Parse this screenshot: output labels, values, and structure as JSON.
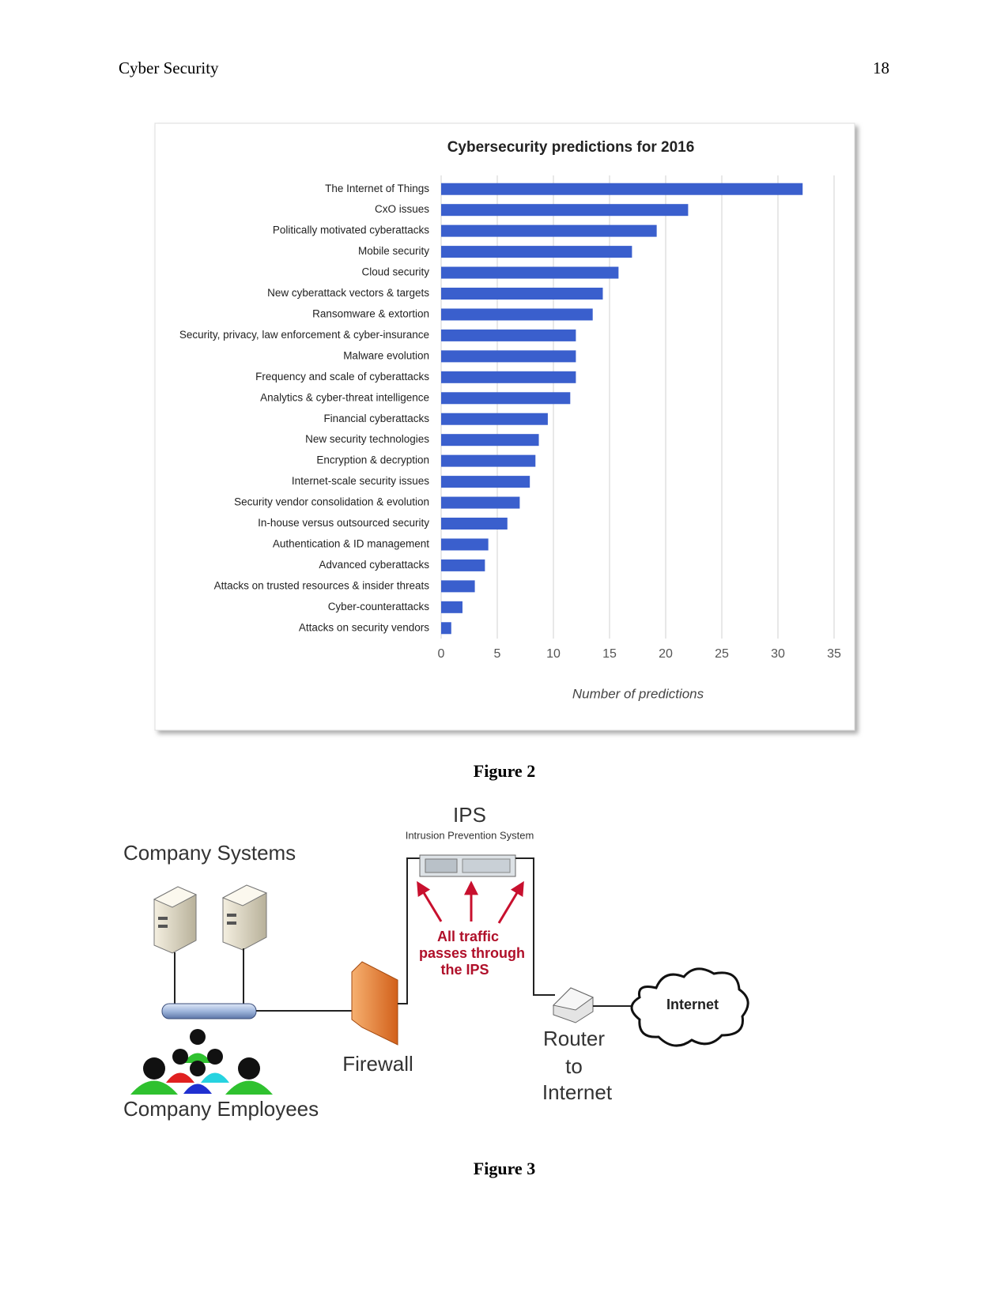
{
  "header": {
    "title": "Cyber Security",
    "page_number": "18"
  },
  "chart_data": {
    "type": "bar",
    "orientation": "horizontal",
    "title": "Cybersecurity predictions for 2016",
    "x_label": "Number of predictions",
    "categories": [
      "The Internet of Things",
      "CxO issues",
      "Politically motivated cyberattacks",
      "Mobile security",
      "Cloud security",
      "New cyberattack vectors & targets",
      "Ransomware & extortion",
      "Security, privacy, law enforcement & cyber-insurance",
      "Malware evolution",
      "Frequency and scale of cyberattacks",
      "Analytics & cyber-threat intelligence",
      "Financial cyberattacks",
      "New security technologies",
      "Encryption & decryption",
      "Internet-scale security issues",
      "Security vendor consolidation & evolution",
      "In-house versus outsourced security",
      "Authentication & ID management",
      "Advanced cyberattacks",
      "Attacks on trusted resources & insider threats",
      "Cyber-counterattacks",
      "Attacks on security vendors"
    ],
    "values": [
      32.2,
      22,
      19.2,
      17,
      15.8,
      14.4,
      13.5,
      12,
      12,
      12,
      11.5,
      9.5,
      8.7,
      8.4,
      7.9,
      7,
      5.9,
      4.2,
      3.9,
      3,
      1.9,
      0.9
    ],
    "color": "#3a5fcd",
    "xlim": [
      0,
      35
    ],
    "xticks": [
      0,
      5,
      10,
      15,
      20,
      25,
      30,
      35
    ],
    "grid": true
  },
  "figure2_caption": "Figure 2",
  "diagram": {
    "company_systems": "Company Systems",
    "company_employees": "Company Employees",
    "firewall": "Firewall",
    "ips_title": "IPS",
    "ips_subtitle": "Intrusion Prevention System",
    "ips_note": [
      "All traffic",
      "passes through",
      "the IPS"
    ],
    "router": [
      "Router",
      "to",
      "Internet"
    ],
    "internet": "Internet"
  },
  "figure3_caption": "Figure 3"
}
